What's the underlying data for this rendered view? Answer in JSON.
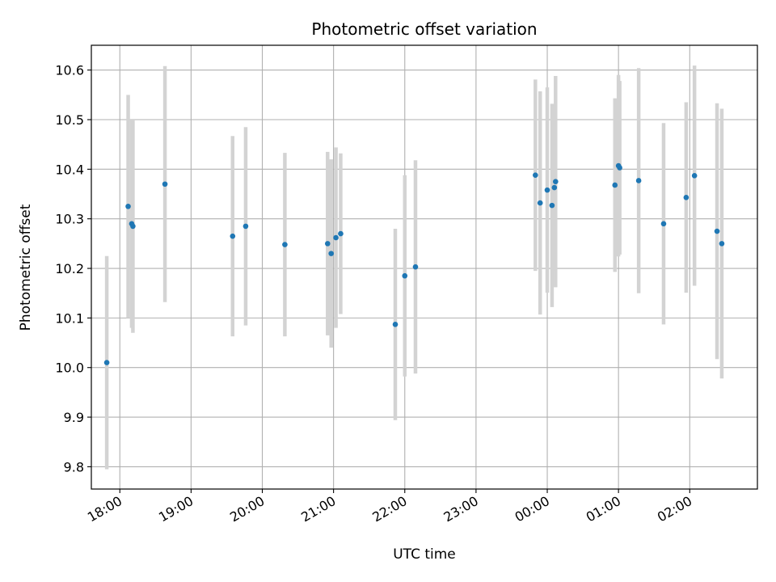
{
  "chart_data": {
    "type": "scatter",
    "title": "Photometric offset variation",
    "xlabel": "UTC time",
    "ylabel": "Photometric offset",
    "grid": true,
    "legend": "none",
    "x_tick_labels": [
      "18:00",
      "19:00",
      "20:00",
      "21:00",
      "22:00",
      "23:00",
      "00:00",
      "01:00",
      "02:00"
    ],
    "x_tick_label_rotation_deg": 30,
    "y_ticks": [
      9.8,
      9.9,
      10.0,
      10.1,
      10.2,
      10.3,
      10.4,
      10.5,
      10.6
    ],
    "y_tick_labels": [
      "9.8",
      "9.9",
      "10.0",
      "10.1",
      "10.2",
      "10.3",
      "10.4",
      "10.5",
      "10.6"
    ],
    "ylim": [
      9.755,
      10.65
    ],
    "xlim": [
      "17:36",
      "02:57"
    ],
    "colors": {
      "point": "#1f77b4",
      "errorbar": "#d3d3d3",
      "grid": "#b0b0b0"
    },
    "series": [
      {
        "points": [
          {
            "x": "17:49",
            "y": 10.01,
            "err": 0.215
          },
          {
            "x": "18:07",
            "y": 10.325,
            "err": 0.225
          },
          {
            "x": "18:10",
            "y": 10.29,
            "err": 0.21
          },
          {
            "x": "18:11",
            "y": 10.285,
            "err": 0.215
          },
          {
            "x": "18:38",
            "y": 10.37,
            "err": 0.238
          },
          {
            "x": "19:35",
            "y": 10.265,
            "err": 0.202
          },
          {
            "x": "19:46",
            "y": 10.285,
            "err": 0.2
          },
          {
            "x": "20:19",
            "y": 10.248,
            "err": 0.185
          },
          {
            "x": "20:55",
            "y": 10.25,
            "err": 0.185
          },
          {
            "x": "20:58",
            "y": 10.23,
            "err": 0.19
          },
          {
            "x": "21:02",
            "y": 10.262,
            "err": 0.182
          },
          {
            "x": "21:06",
            "y": 10.27,
            "err": 0.162
          },
          {
            "x": "21:52",
            "y": 10.087,
            "err": 0.193
          },
          {
            "x": "22:00",
            "y": 10.185,
            "err": 0.203
          },
          {
            "x": "22:09",
            "y": 10.203,
            "err": 0.215
          },
          {
            "x": "23:50",
            "y": 10.388,
            "err": 0.193
          },
          {
            "x": "23:54",
            "y": 10.332,
            "err": 0.225
          },
          {
            "x": "00:00",
            "y": 10.358,
            "err": 0.207
          },
          {
            "x": "00:04",
            "y": 10.327,
            "err": 0.205
          },
          {
            "x": "00:06",
            "y": 10.363,
            "err": 0.168
          },
          {
            "x": "00:07",
            "y": 10.375,
            "err": 0.213
          },
          {
            "x": "00:57",
            "y": 10.368,
            "err": 0.175
          },
          {
            "x": "01:00",
            "y": 10.407,
            "err": 0.183
          },
          {
            "x": "01:01",
            "y": 10.403,
            "err": 0.175
          },
          {
            "x": "01:17",
            "y": 10.377,
            "err": 0.227
          },
          {
            "x": "01:38",
            "y": 10.29,
            "err": 0.203
          },
          {
            "x": "01:57",
            "y": 10.343,
            "err": 0.192
          },
          {
            "x": "02:04",
            "y": 10.387,
            "err": 0.222
          },
          {
            "x": "02:23",
            "y": 10.275,
            "err": 0.258
          },
          {
            "x": "02:27",
            "y": 10.25,
            "err": 0.272
          }
        ]
      }
    ]
  }
}
